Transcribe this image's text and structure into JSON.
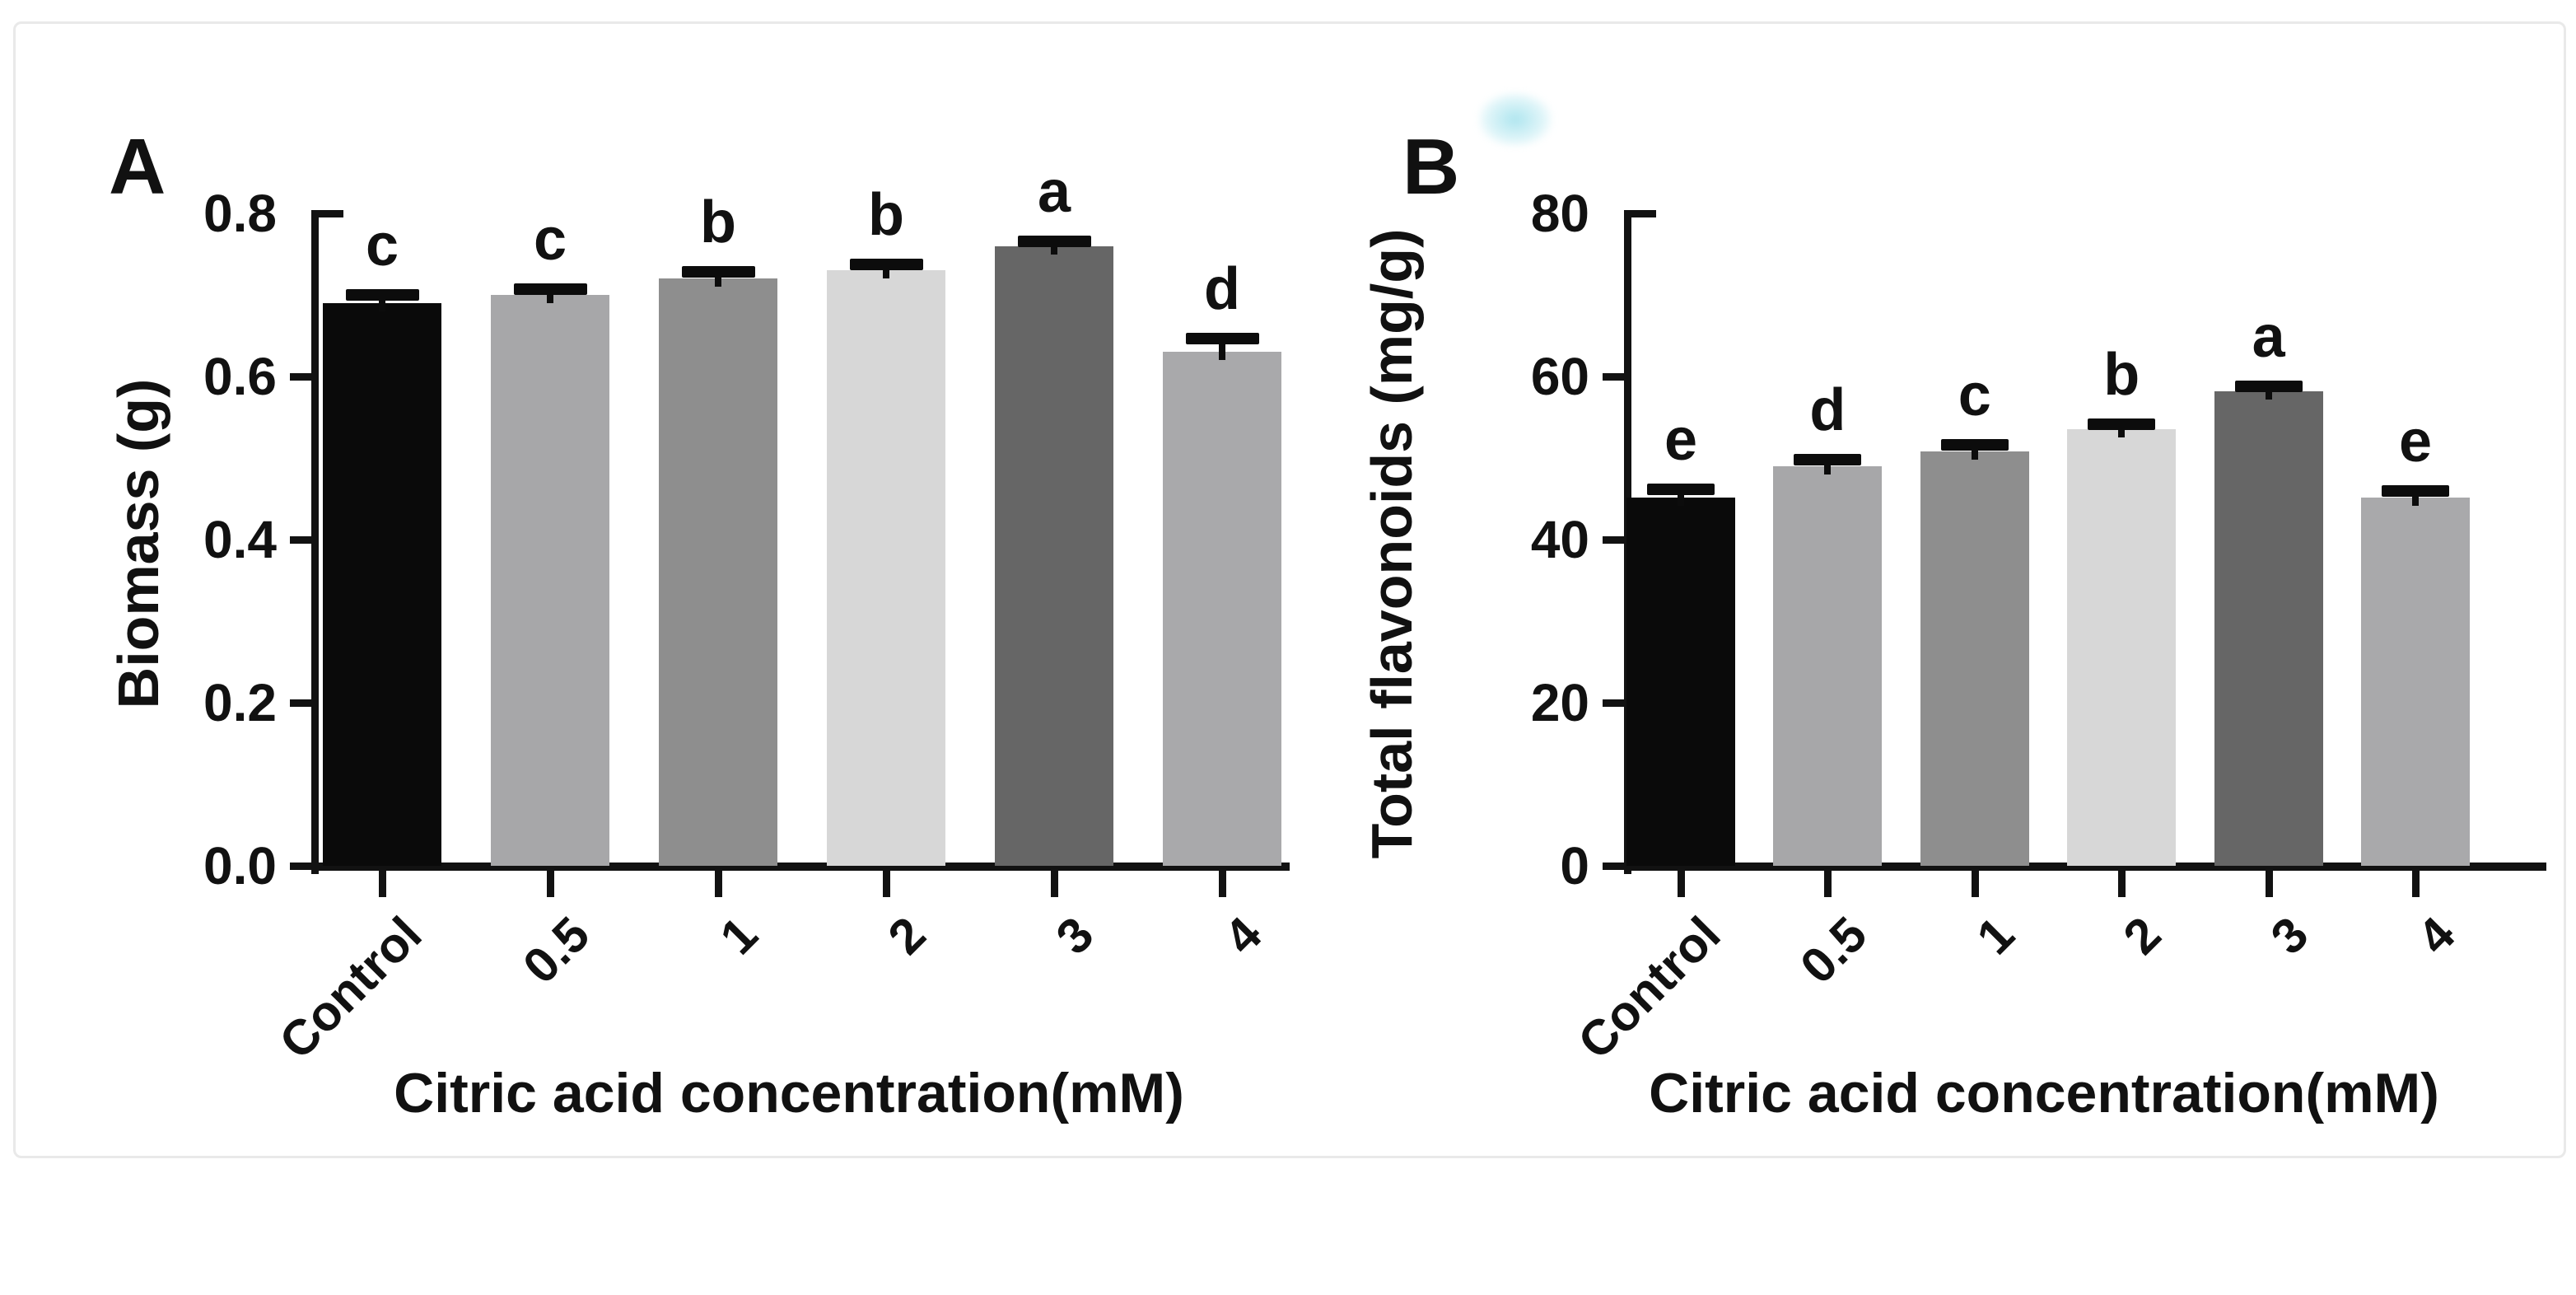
{
  "page": {
    "background_color": "#ffffff",
    "card_border_color": "#e9e9e9",
    "axis_color": "#121212",
    "text_color": "#111111",
    "smudge_color": "#aae4ee"
  },
  "chart_data": [
    {
      "type": "bar",
      "panel_label": "A",
      "title": "",
      "xlabel": "Citric acid concentration(mM)",
      "ylabel": "Biomass (g)",
      "categories": [
        "Control",
        "0.5",
        "1",
        "2",
        "3",
        "4"
      ],
      "values": [
        0.69,
        0.7,
        0.72,
        0.73,
        0.76,
        0.63
      ],
      "errors": [
        0.01,
        0.007,
        0.008,
        0.007,
        0.005,
        0.016
      ],
      "sig_letters": [
        "c",
        "c",
        "b",
        "b",
        "a",
        "d"
      ],
      "bar_colors": [
        "#0a0a0a",
        "#a7a7a9",
        "#8e8e8e",
        "#d7d7d7",
        "#666666",
        "#a9a9ab"
      ],
      "ylim": [
        0,
        0.8
      ],
      "yticks": [
        0,
        0.2,
        0.4,
        0.6,
        0.8
      ],
      "ytick_labels": [
        "0.0",
        "0.2",
        "0.4",
        "0.6",
        "0.8"
      ],
      "grid": false,
      "legend": null
    },
    {
      "type": "bar",
      "panel_label": "B",
      "title": "",
      "xlabel": "Citric acid concentration(mM)",
      "ylabel": "Total flavonoids (mg/g)",
      "categories": [
        "Control",
        "0.5",
        "1",
        "2",
        "3",
        "4"
      ],
      "values": [
        45.2,
        49.0,
        50.8,
        53.5,
        58.2,
        45.2
      ],
      "errors": [
        1.0,
        0.8,
        0.8,
        0.6,
        0.6,
        0.8
      ],
      "sig_letters": [
        "e",
        "d",
        "c",
        "b",
        "a",
        "e"
      ],
      "bar_colors": [
        "#0a0a0a",
        "#a7a7a9",
        "#8e8e8e",
        "#d7d7d7",
        "#666666",
        "#a9a9ab"
      ],
      "ylim": [
        0,
        80
      ],
      "yticks": [
        0,
        20,
        40,
        60,
        80
      ],
      "ytick_labels": [
        "0",
        "20",
        "40",
        "60",
        "80"
      ],
      "grid": false,
      "legend": null
    }
  ]
}
